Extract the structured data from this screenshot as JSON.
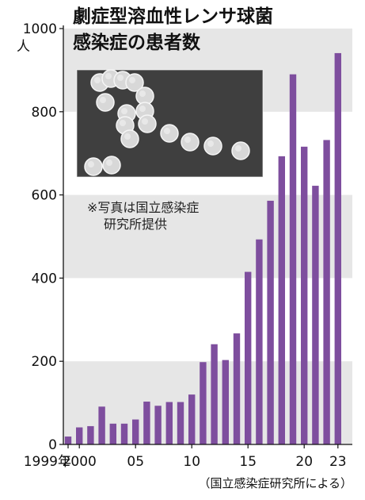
{
  "chart_data": {
    "type": "bar",
    "title_lines": [
      "劇症型溶血性レンサ球菌",
      "感染症の患者数"
    ],
    "ylabel": "人",
    "ylim": [
      0,
      1000
    ],
    "yticks": [
      0,
      200,
      400,
      600,
      800,
      1000
    ],
    "grid": "alternating horizontal bands",
    "x": [
      1999,
      2000,
      2001,
      2002,
      2003,
      2004,
      2005,
      2006,
      2007,
      2008,
      2009,
      2010,
      2011,
      2012,
      2013,
      2014,
      2015,
      2016,
      2017,
      2018,
      2019,
      2020,
      2021,
      2022,
      2023
    ],
    "xtick_labels": [
      {
        "x": 1999,
        "label": "1999年"
      },
      {
        "x": 2000,
        "label": "2000"
      },
      {
        "x": 2005,
        "label": "05"
      },
      {
        "x": 2010,
        "label": "10"
      },
      {
        "x": 2015,
        "label": "15"
      },
      {
        "x": 2020,
        "label": "20"
      },
      {
        "x": 2023,
        "label": "23"
      }
    ],
    "values": [
      19,
      41,
      44,
      91,
      50,
      50,
      60,
      103,
      93,
      102,
      102,
      120,
      198,
      241,
      203,
      267,
      415,
      493,
      586,
      693,
      890,
      716,
      622,
      732,
      941
    ],
    "bar_color": "#7e4e9e",
    "band_color": "#e6e6e6",
    "photo_note_lines": [
      "※写真は国立感染症",
      "研究所提供"
    ],
    "source": "（国立感染症研究所による）"
  }
}
